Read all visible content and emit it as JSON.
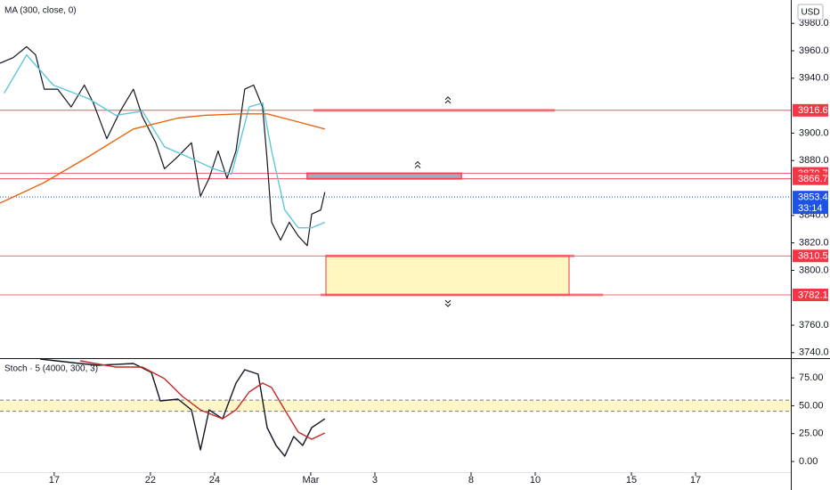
{
  "chart_data": [
    {
      "type": "line",
      "title": "MA (300, close, 0)",
      "currency": "USD",
      "xlim": [
        -1.69,
        22.97
      ],
      "ylim": [
        3736,
        3997
      ],
      "yticks": [
        {
          "value": 3980,
          "label": "3980.0"
        },
        {
          "value": 3960,
          "label": "3960.0"
        },
        {
          "value": 3940,
          "label": "3940.0"
        },
        {
          "value": 3900,
          "label": "3900.0"
        },
        {
          "value": 3880,
          "label": "3880.0"
        },
        {
          "value": 3840,
          "label": "3840.0"
        },
        {
          "value": 3820,
          "label": "3820.0"
        },
        {
          "value": 3800,
          "label": "3800.0"
        },
        {
          "value": 3760,
          "label": "3760.0"
        },
        {
          "value": 3740,
          "label": "3740.0"
        }
      ],
      "series": [
        {
          "color": "#131722",
          "x": [
            -1.69,
            -1.28,
            -0.86,
            -0.58,
            -0.31,
            0.11,
            0.53,
            0.94,
            1.22,
            1.64,
            2.06,
            2.47,
            2.75,
            3.17,
            3.44,
            3.86,
            4.28,
            4.56,
            4.83,
            5.11,
            5.39,
            5.67,
            5.94,
            6.22,
            6.5,
            6.64,
            6.78,
            7.06,
            7.33,
            7.61,
            7.89,
            8.03,
            8.31,
            8.44
          ],
          "values": [
            3951,
            3955,
            3963,
            3957,
            3932,
            3932,
            3919,
            3935,
            3922,
            3896,
            3916,
            3932,
            3912,
            3893,
            3874,
            3883,
            3893,
            3854,
            3867,
            3887,
            3867,
            3887,
            3932,
            3935,
            3919,
            3880,
            3835,
            3822,
            3835,
            3825,
            3818,
            3841,
            3844,
            3857
          ]
        },
        {
          "color": "#5fc7d8",
          "x": [
            -1.56,
            -0.86,
            -0.03,
            1.08,
            1.92,
            2.75,
            3.44,
            4.14,
            4.97,
            5.53,
            6.08,
            6.5,
            6.78,
            7.19,
            7.61,
            8.03,
            8.44
          ],
          "values": [
            3929,
            3957,
            3935,
            3925,
            3913,
            3916,
            3890,
            3883,
            3874,
            3870,
            3919,
            3922,
            3887,
            3844,
            3831,
            3831,
            3835
          ]
        },
        {
          "color": "#e8650f",
          "x": [
            -1.69,
            -0.31,
            1.08,
            2.47,
            3.86,
            4.69,
            5.81,
            6.64,
            7.47,
            8.44
          ],
          "values": [
            3849,
            3864,
            3883,
            3903,
            3911,
            3913,
            3914,
            3914,
            3909,
            3903
          ]
        }
      ],
      "levels": [
        3916.6,
        3870.7,
        3866.7,
        3810.5,
        3782.1
      ],
      "level_color": "#f23645",
      "last": 3853.4,
      "last_color": "#1e53e5",
      "countdown": "33:14"
    },
    {
      "type": "line",
      "title": "Stoch · 5 (4000, 300, 3)",
      "xlim": [
        -1.69,
        22.97
      ],
      "ylim": [
        -9.6,
        92.7
      ],
      "xticks": [
        {
          "value": 0,
          "label": "17"
        },
        {
          "value": 3,
          "label": "22"
        },
        {
          "value": 5,
          "label": "24"
        },
        {
          "value": 8,
          "label": "Mar"
        },
        {
          "value": 10,
          "label": "3"
        },
        {
          "value": 13,
          "label": "8"
        },
        {
          "value": 15,
          "label": "10"
        },
        {
          "value": 18,
          "label": "15"
        },
        {
          "value": 20,
          "label": "17"
        }
      ],
      "yticks": [
        {
          "value": 75,
          "label": "75.00"
        },
        {
          "value": 50,
          "label": "50.00"
        },
        {
          "value": 25,
          "label": "25.00"
        },
        {
          "value": 0,
          "label": "0.00"
        }
      ],
      "band": [
        45,
        55
      ],
      "series": [
        {
          "color": "#131722",
          "x": [
            -0.44,
            0.81,
            1.36,
            2.47,
            3.03,
            3.31,
            3.86,
            4.28,
            4.56,
            4.83,
            5.25,
            5.67,
            5.94,
            6.36,
            6.64,
            6.92,
            7.19,
            7.47,
            7.75,
            8.03,
            8.44
          ],
          "values": [
            91.9,
            87.9,
            86.3,
            87.9,
            79.9,
            54.3,
            55.9,
            46.3,
            10.4,
            46.3,
            38.3,
            70.3,
            82.3,
            78.3,
            30.4,
            14.4,
            4.8,
            22.4,
            14.4,
            30.4,
            38.3
          ]
        },
        {
          "color": "#c62828",
          "x": [
            0.81,
            1.92,
            2.75,
            3.44,
            4.0,
            4.56,
            5.25,
            5.67,
            6.08,
            6.5,
            6.78,
            7.19,
            7.61,
            8.03,
            8.44
          ],
          "values": [
            90.3,
            84.7,
            84.7,
            74.3,
            58.3,
            46.3,
            38.3,
            46.3,
            62.3,
            70.3,
            66.3,
            46.3,
            26.4,
            20.0,
            25.6
          ]
        }
      ]
    }
  ]
}
